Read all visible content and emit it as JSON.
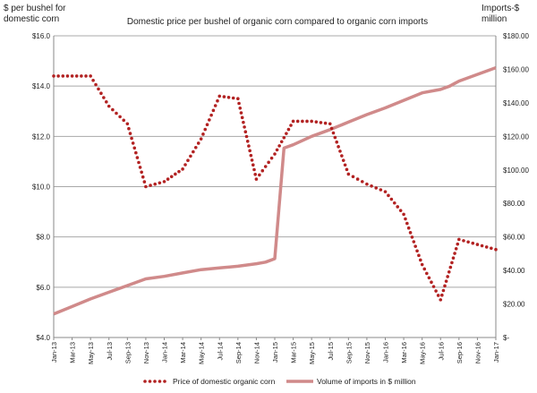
{
  "chart_data": {
    "type": "line",
    "title": "Domestic price per bushel of organic corn compared to organic corn imports",
    "ylabel_left": "$ per bushel for domestic  corn",
    "ylabel_right": "Imports-$ million",
    "categories": [
      "Jan-13",
      "Mar-13",
      "May-13",
      "Jul-13",
      "Sep-13",
      "Nov-13",
      "Jan-14",
      "Mar-14",
      "May-14",
      "Jul-14",
      "Sep-14",
      "Nov-14",
      "Jan-15",
      "Mar-15",
      "May-15",
      "Jul-15",
      "Sep-15",
      "Nov-15",
      "Jan-16",
      "Mar-16",
      "May-16",
      "Jul-16",
      "Sep-16",
      "Nov-16",
      "Jan-17"
    ],
    "y_left_ticks": [
      "$4.0",
      "$6.0",
      "$8.0",
      "$10.0",
      "$12.0",
      "$14.0",
      "$16.0"
    ],
    "y_right_ticks": [
      "$-",
      "$20.00",
      "$40.00",
      "$60.00",
      "$80.00",
      "$100.00",
      "$120.00",
      "$140.00",
      "$160.00",
      "$180.00"
    ],
    "ylim_left": [
      4,
      16
    ],
    "ylim_right": [
      0,
      180
    ],
    "grid": true,
    "legend_position": "bottom",
    "series": [
      {
        "name": "Price of domestic organic corn",
        "axis": "left",
        "style": "dotted",
        "color": "#b22222",
        "x_index": [
          0,
          1,
          2,
          3,
          4,
          5,
          6,
          7,
          8,
          9,
          10,
          11,
          12,
          13,
          14,
          15,
          16,
          17,
          18,
          19,
          20,
          21,
          22,
          23,
          24
        ],
        "values": [
          14.4,
          14.4,
          14.4,
          13.2,
          12.5,
          10.0,
          10.2,
          10.7,
          11.9,
          13.6,
          13.5,
          10.3,
          11.3,
          12.6,
          12.6,
          12.5,
          10.5,
          10.1,
          9.8,
          8.9,
          6.9,
          5.5,
          7.9,
          7.7,
          7.5
        ]
      },
      {
        "name": "Volume of imports in $ million",
        "axis": "right",
        "style": "solid",
        "color": "#d08a8a",
        "x": [
          0,
          1,
          2,
          3,
          4,
          5,
          6,
          7,
          8,
          9,
          10,
          11,
          11.5,
          12,
          12.5,
          13,
          14,
          15,
          16,
          17,
          18,
          19,
          20,
          21,
          21.5,
          22,
          23,
          24
        ],
        "values": [
          14,
          18.5,
          23,
          27,
          31,
          35,
          36.5,
          38.5,
          40.5,
          41.5,
          42.5,
          44,
          45,
          47,
          113,
          115,
          120,
          124,
          128.5,
          133,
          137,
          141.5,
          146,
          148,
          150,
          153,
          157,
          161
        ]
      }
    ]
  }
}
